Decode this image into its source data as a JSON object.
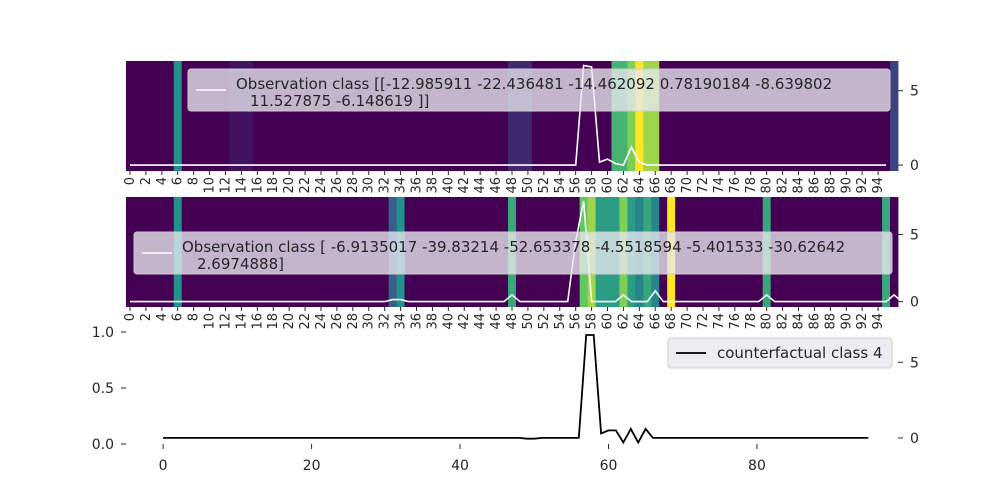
{
  "chart_data": [
    {
      "type": "heatmap",
      "panel": "top",
      "legend_lines": [
        "Observation class [[-12.985911    -22.436481    -14.462092      0.78190184  -8.639802",
        "11.527875     -6.148619   ]]"
      ],
      "right_axis_ticks": [
        0,
        5
      ],
      "right_ylim": [
        -0.4,
        7
      ],
      "x_tick_labels": [
        "0",
        "2",
        "4",
        "6",
        "8",
        "10",
        "12",
        "14",
        "16",
        "18",
        "20",
        "22",
        "24",
        "26",
        "28",
        "30",
        "32",
        "34",
        "36",
        "38",
        "40",
        "42",
        "44",
        "46",
        "48",
        "50",
        "52",
        "54",
        "56",
        "58",
        "60",
        "62",
        "64",
        "66",
        "68",
        "70",
        "72",
        "74",
        "76",
        "78",
        "80",
        "82",
        "84",
        "86",
        "88",
        "90",
        "92",
        "94"
      ],
      "heat_values": [
        0,
        0,
        0,
        0,
        0,
        0,
        0.5,
        0,
        0,
        0,
        0,
        0,
        0,
        0.05,
        0.05,
        0.05,
        0,
        0,
        0,
        0,
        0,
        0,
        0,
        0,
        0,
        0,
        0,
        0,
        0,
        0,
        0,
        0,
        0,
        0,
        0,
        0,
        0,
        0,
        0,
        0,
        0,
        0,
        0,
        0,
        0,
        0,
        0,
        0,
        0.12,
        0.12,
        0.12,
        0,
        0,
        0,
        0,
        0,
        0,
        0,
        0,
        0,
        0,
        0.65,
        0.65,
        0.8,
        1,
        0.85,
        0.85,
        0,
        0,
        0,
        0,
        0,
        0,
        0,
        0,
        0,
        0,
        0,
        0,
        0,
        0,
        0,
        0,
        0,
        0,
        0,
        0,
        0,
        0,
        0,
        0,
        0,
        0,
        0,
        0,
        0,
        0.2
      ],
      "line": [
        0,
        0,
        0,
        0,
        0,
        0,
        0,
        0,
        0,
        0,
        0,
        0,
        0,
        0,
        0,
        0,
        0,
        0,
        0,
        0,
        0,
        0,
        0,
        0,
        0,
        0,
        0,
        0,
        0,
        0,
        0,
        0,
        0,
        0,
        0,
        0,
        0,
        0,
        0,
        0,
        0,
        0,
        0,
        0,
        0,
        0,
        0,
        0,
        0,
        0,
        0,
        0,
        0,
        0,
        0,
        0,
        0,
        6.7,
        6.6,
        0.2,
        0.4,
        0.1,
        0,
        1.2,
        0.2,
        0,
        0,
        0,
        0,
        0,
        0,
        0,
        0,
        0,
        0,
        0,
        0,
        0,
        0,
        0,
        0,
        0,
        0,
        0,
        0,
        0,
        0,
        0,
        0,
        0,
        0,
        0,
        0,
        0,
        0,
        0
      ]
    },
    {
      "type": "heatmap",
      "panel": "middle",
      "legend_lines": [
        "Observation class [ -6.9135017 -39.83214    -52.653378    -4.5518594  -5.401533   -30.62642",
        "2.6974888]"
      ],
      "right_axis_ticks": [
        0,
        5
      ],
      "right_ylim": [
        -0.4,
        7.8
      ],
      "x_tick_labels": [
        "0",
        "2",
        "4",
        "6",
        "8",
        "10",
        "12",
        "14",
        "16",
        "18",
        "20",
        "22",
        "24",
        "26",
        "28",
        "30",
        "32",
        "34",
        "36",
        "38",
        "40",
        "42",
        "44",
        "46",
        "48",
        "50",
        "52",
        "54",
        "56",
        "58",
        "60",
        "62",
        "64",
        "66",
        "68",
        "70",
        "72",
        "74",
        "76",
        "78",
        "80",
        "82",
        "84",
        "86",
        "88",
        "90",
        "92",
        "94"
      ],
      "heat_values": [
        0,
        0,
        0,
        0,
        0,
        0,
        0.5,
        0,
        0,
        0,
        0,
        0,
        0,
        0,
        0,
        0,
        0,
        0,
        0,
        0,
        0,
        0,
        0,
        0,
        0,
        0,
        0,
        0,
        0,
        0,
        0,
        0,
        0,
        0.3,
        0.5,
        0,
        0,
        0,
        0,
        0,
        0,
        0,
        0,
        0,
        0,
        0,
        0,
        0,
        0.6,
        0,
        0,
        0,
        0,
        0,
        0,
        0,
        0,
        0.75,
        0.85,
        0.55,
        0.55,
        0.55,
        0.8,
        0.55,
        0.45,
        0.6,
        0.45,
        0,
        1,
        0,
        0,
        0,
        0,
        0,
        0,
        0,
        0,
        0,
        0,
        0,
        0.6,
        0,
        0,
        0,
        0,
        0,
        0,
        0,
        0,
        0,
        0,
        0,
        0,
        0,
        0,
        0.6,
        0
      ],
      "line": [
        0,
        0,
        0,
        0,
        0,
        0,
        0,
        0,
        0,
        0,
        0,
        0,
        0,
        0,
        0,
        0,
        0,
        0,
        0,
        0,
        0,
        0,
        0,
        0,
        0,
        0,
        0,
        0,
        0,
        0,
        0,
        0,
        0,
        0,
        0,
        0,
        0,
        0,
        0,
        0,
        0,
        0,
        0,
        0,
        0,
        0,
        0,
        0,
        0,
        0,
        0,
        0,
        0,
        0,
        0,
        0,
        0,
        7.5,
        0,
        0,
        0,
        0,
        0.5,
        0,
        0,
        0,
        0,
        0,
        0,
        0,
        0,
        0,
        0,
        0,
        0,
        0,
        0,
        0,
        0,
        0,
        0,
        0,
        0,
        0,
        0,
        0,
        0,
        0,
        0,
        0,
        0,
        0,
        0,
        0,
        0,
        0,
        0.5,
        0
      ],
      "line_bumps": {
        "33": 0.15,
        "34": 0.15,
        "48": 0.5,
        "56": 4.5,
        "66": 0.8,
        "80": 0.5
      }
    },
    {
      "type": "line",
      "panel": "bottom",
      "legend_label": "counterfactual class 4",
      "left_axis_ticks": [
        "0.0",
        "0.5",
        "1.0"
      ],
      "left_ylim": [
        0,
        1
      ],
      "right_axis_ticks": [
        0,
        5
      ],
      "right_ylim": [
        -0.4,
        7
      ],
      "x_axis_ticks": [
        "0",
        "20",
        "40",
        "60",
        "80"
      ],
      "xlim": [
        -5,
        99
      ],
      "line": [
        0,
        0,
        0,
        0,
        0,
        0,
        0,
        0,
        0,
        0,
        0,
        0,
        0,
        0,
        0,
        0,
        0,
        0,
        0,
        0,
        0,
        0,
        0,
        0,
        0,
        0,
        0,
        0,
        0,
        0,
        0,
        0,
        0,
        0,
        0,
        0,
        0,
        0,
        0,
        0,
        0,
        0,
        0,
        0,
        0,
        0,
        0,
        0,
        0,
        -0.05,
        -0.05,
        0,
        0,
        0,
        0,
        0,
        0,
        6.8,
        6.8,
        0.3,
        0.5,
        0.5,
        -0.3,
        0.6,
        -0.3,
        0.6,
        0,
        0,
        0,
        0,
        0,
        0,
        0,
        0,
        0,
        0,
        0,
        0,
        0,
        0,
        0,
        0,
        0,
        0,
        0,
        0,
        0,
        0,
        0,
        0,
        0,
        0,
        0,
        0,
        0,
        0
      ]
    }
  ]
}
